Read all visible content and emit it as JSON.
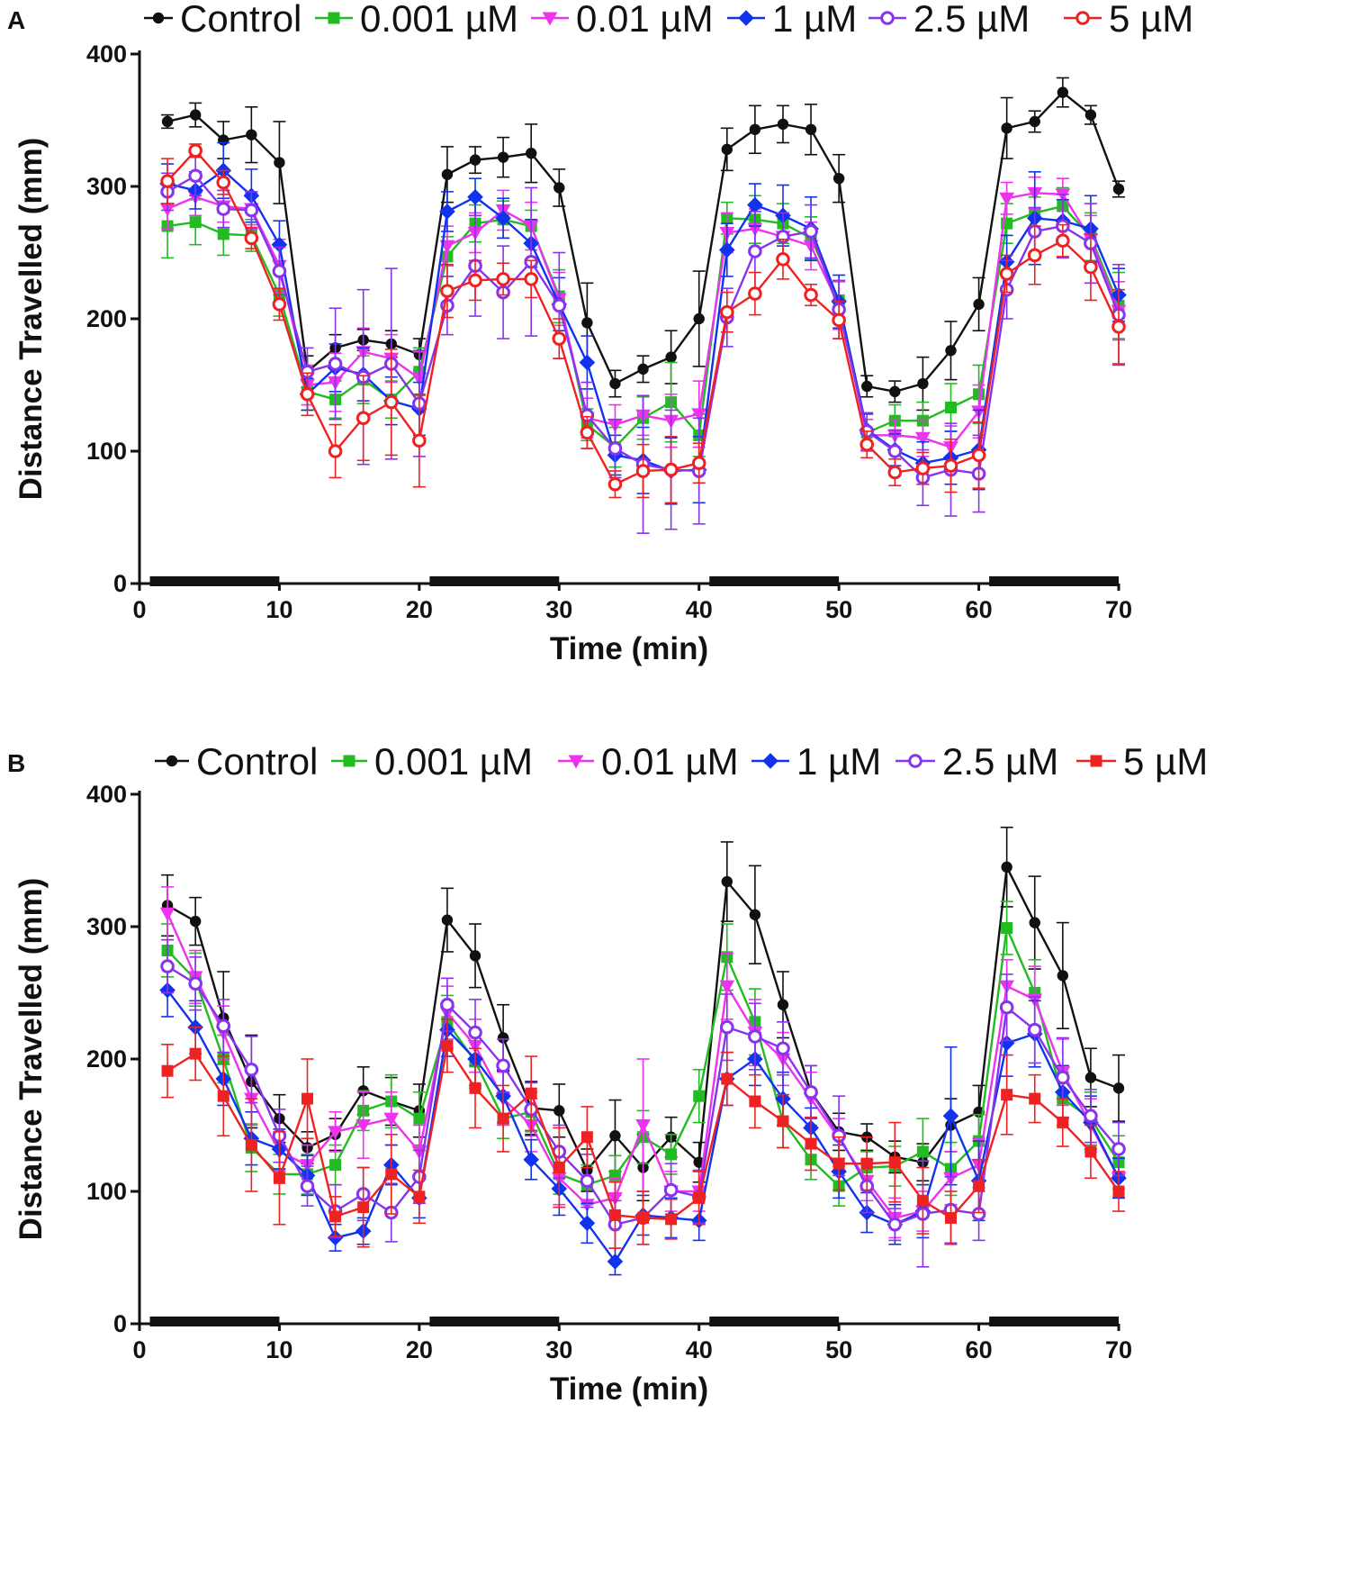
{
  "colors": {
    "Control": "#111111",
    "0.001 µM": "#22bb22",
    "0.01 µM": "#ee33ee",
    "1 µM": "#1133ee",
    "2.5 µM": "#8833ee",
    "5 µM": "#ee2222",
    "axis": "#111111"
  },
  "chart_data": [
    {
      "panel_label": "A",
      "type": "line",
      "xlabel": "Time (min)",
      "ylabel": "Distance Travelled (mm)",
      "xlim": [
        0,
        70
      ],
      "ylim": [
        0,
        400
      ],
      "x_ticks": [
        "0",
        "10",
        "20",
        "30",
        "40",
        "50",
        "60",
        "70"
      ],
      "y_ticks": [
        "0",
        "100",
        "200",
        "300",
        "400"
      ],
      "dark_periods_min": [
        [
          1,
          10
        ],
        [
          21,
          30
        ],
        [
          41,
          50
        ],
        [
          61,
          70
        ]
      ],
      "x": [
        2,
        4,
        6,
        8,
        10,
        12,
        14,
        16,
        18,
        20,
        22,
        24,
        26,
        28,
        30,
        32,
        34,
        36,
        38,
        40,
        42,
        44,
        46,
        48,
        50,
        52,
        54,
        56,
        58,
        60,
        62,
        64,
        66,
        68,
        70
      ],
      "series": [
        {
          "name": "Control",
          "marker": "circle",
          "filled": true,
          "values": [
            349,
            354,
            335,
            339,
            318,
            160,
            178,
            184,
            181,
            173,
            309,
            320,
            322,
            325,
            299,
            197,
            151,
            162,
            171,
            200,
            328,
            343,
            347,
            343,
            306,
            149,
            145,
            151,
            176,
            211,
            344,
            349,
            371,
            354,
            298
          ],
          "errors": [
            5,
            9,
            14,
            21,
            31,
            12,
            10,
            8,
            10,
            12,
            21,
            10,
            15,
            22,
            14,
            30,
            10,
            10,
            20,
            36,
            16,
            18,
            14,
            19,
            18,
            8,
            8,
            20,
            22,
            20,
            23,
            8,
            11,
            7,
            6
          ]
        },
        {
          "name": "0.001 µM",
          "marker": "square",
          "filled": true,
          "values": [
            270,
            273,
            264,
            263,
            218,
            145,
            139,
            154,
            139,
            160,
            247,
            272,
            275,
            270,
            217,
            120,
            103,
            125,
            137,
            112,
            276,
            275,
            272,
            261,
            214,
            114,
            123,
            123,
            133,
            143,
            272,
            280,
            285,
            262,
            210
          ],
          "errors": [
            24,
            17,
            16,
            12,
            16,
            14,
            14,
            18,
            14,
            18,
            15,
            14,
            14,
            12,
            20,
            12,
            15,
            16,
            30,
            16,
            12,
            18,
            15,
            16,
            14,
            10,
            12,
            14,
            18,
            22,
            15,
            12,
            14,
            18,
            25
          ]
        },
        {
          "name": "0.01 µM",
          "marker": "triangle-down",
          "filled": true,
          "values": [
            283,
            292,
            285,
            283,
            240,
            150,
            152,
            175,
            170,
            155,
            255,
            265,
            282,
            270,
            215,
            125,
            120,
            127,
            123,
            128,
            265,
            268,
            262,
            255,
            210,
            112,
            112,
            110,
            103,
            130,
            291,
            295,
            294,
            260,
            206
          ],
          "errors": [
            15,
            14,
            12,
            12,
            20,
            15,
            22,
            18,
            18,
            20,
            15,
            15,
            15,
            18,
            20,
            15,
            15,
            15,
            20,
            25,
            15,
            15,
            15,
            18,
            18,
            12,
            12,
            14,
            16,
            20,
            12,
            12,
            12,
            18,
            22
          ]
        },
        {
          "name": "1 µM",
          "marker": "diamond",
          "filled": true,
          "values": [
            302,
            297,
            312,
            293,
            256,
            143,
            163,
            158,
            138,
            132,
            281,
            292,
            276,
            257,
            211,
            167,
            97,
            93,
            85,
            86,
            252,
            286,
            278,
            268,
            213,
            116,
            101,
            91,
            95,
            101,
            243,
            276,
            274,
            268,
            218
          ],
          "errors": [
            15,
            14,
            21,
            20,
            18,
            12,
            18,
            20,
            18,
            20,
            15,
            14,
            15,
            18,
            20,
            20,
            15,
            25,
            25,
            25,
            20,
            16,
            23,
            24,
            20,
            12,
            12,
            16,
            20,
            30,
            20,
            35,
            16,
            25,
            20
          ]
        },
        {
          "name": "2.5 µM",
          "marker": "circle",
          "filled": false,
          "values": [
            296,
            308,
            283,
            282,
            236,
            160,
            166,
            156,
            166,
            136,
            210,
            240,
            220,
            243,
            210,
            127,
            102,
            90,
            86,
            85,
            201,
            251,
            262,
            266,
            207,
            115,
            100,
            80,
            86,
            83,
            222,
            266,
            270,
            257,
            203
          ],
          "errors": [
            14,
            15,
            14,
            14,
            18,
            18,
            42,
            66,
            72,
            40,
            22,
            38,
            35,
            56,
            40,
            25,
            22,
            52,
            45,
            40,
            22,
            30,
            18,
            20,
            22,
            14,
            16,
            21,
            35,
            29,
            22,
            18,
            24,
            30,
            38
          ]
        },
        {
          "name": "5 µM",
          "marker": "circle",
          "filled": false,
          "values": [
            304,
            327,
            303,
            261,
            211,
            143,
            100,
            125,
            137,
            108,
            221,
            229,
            230,
            230,
            185,
            114,
            75,
            85,
            86,
            91,
            205,
            219,
            245,
            218,
            199,
            105,
            84,
            87,
            89,
            97,
            234,
            248,
            259,
            239,
            194
          ],
          "errors": [
            17,
            5,
            9,
            8,
            12,
            16,
            20,
            32,
            40,
            35,
            20,
            15,
            12,
            14,
            15,
            12,
            10,
            20,
            25,
            15,
            15,
            16,
            15,
            8,
            14,
            10,
            10,
            12,
            20,
            25,
            14,
            22,
            12,
            25,
            28
          ]
        }
      ],
      "legend": {
        "position": "top",
        "items": [
          "Control",
          "0.001 µM",
          "0.01 µM",
          "1 µM",
          "2.5 µM",
          "5 µM"
        ]
      }
    },
    {
      "panel_label": "B",
      "type": "line",
      "xlabel": "Time (min)",
      "ylabel": "Distance Travelled (mm)",
      "xlim": [
        0,
        70
      ],
      "ylim": [
        0,
        400
      ],
      "x_ticks": [
        "0",
        "10",
        "20",
        "30",
        "40",
        "50",
        "60",
        "70"
      ],
      "y_ticks": [
        "0",
        "100",
        "200",
        "300",
        "400"
      ],
      "dark_periods_min": [
        [
          1,
          10
        ],
        [
          21,
          30
        ],
        [
          41,
          50
        ],
        [
          61,
          70
        ]
      ],
      "x": [
        2,
        4,
        6,
        8,
        10,
        12,
        14,
        16,
        18,
        20,
        22,
        24,
        26,
        28,
        30,
        32,
        34,
        36,
        38,
        40,
        42,
        44,
        46,
        48,
        50,
        52,
        54,
        56,
        58,
        60,
        62,
        64,
        66,
        68,
        70
      ],
      "series": [
        {
          "name": "Control",
          "marker": "circle",
          "filled": true,
          "values": [
            316,
            304,
            231,
            183,
            155,
            133,
            143,
            176,
            168,
            161,
            305,
            278,
            216,
            163,
            161,
            116,
            142,
            118,
            141,
            122,
            334,
            309,
            241,
            175,
            145,
            141,
            126,
            122,
            150,
            160,
            345,
            303,
            263,
            186,
            178
          ],
          "errors": [
            23,
            18,
            35,
            35,
            18,
            12,
            12,
            18,
            18,
            20,
            24,
            24,
            25,
            20,
            20,
            16,
            27,
            25,
            15,
            15,
            30,
            37,
            25,
            20,
            14,
            10,
            12,
            14,
            20,
            20,
            30,
            35,
            40,
            22,
            25
          ]
        },
        {
          "name": "0.001 µM",
          "marker": "square",
          "filled": true,
          "values": [
            282,
            260,
            200,
            133,
            113,
            113,
            120,
            161,
            168,
            155,
            228,
            198,
            155,
            160,
            113,
            105,
            112,
            141,
            128,
            172,
            277,
            228,
            153,
            124,
            104,
            118,
            119,
            130,
            117,
            138,
            299,
            250,
            170,
            155,
            122
          ],
          "errors": [
            20,
            20,
            18,
            18,
            15,
            15,
            15,
            15,
            20,
            20,
            20,
            20,
            15,
            15,
            15,
            15,
            15,
            20,
            15,
            20,
            25,
            25,
            20,
            15,
            15,
            12,
            15,
            25,
            20,
            20,
            20,
            25,
            20,
            20,
            20
          ]
        },
        {
          "name": "0.01 µM",
          "marker": "triangle-down",
          "filled": true,
          "values": [
            310,
            262,
            220,
            170,
            130,
            120,
            145,
            150,
            155,
            130,
            235,
            210,
            170,
            150,
            110,
            90,
            95,
            150,
            100,
            100,
            255,
            220,
            200,
            170,
            140,
            108,
            80,
            85,
            110,
            120,
            255,
            245,
            190,
            150,
            110
          ],
          "errors": [
            20,
            20,
            20,
            20,
            15,
            15,
            15,
            25,
            20,
            20,
            20,
            20,
            20,
            20,
            20,
            15,
            15,
            50,
            15,
            15,
            25,
            25,
            20,
            20,
            15,
            15,
            15,
            15,
            20,
            20,
            20,
            25,
            25,
            20,
            15
          ]
        },
        {
          "name": "1 µM",
          "marker": "diamond",
          "filled": true,
          "values": [
            252,
            224,
            185,
            140,
            132,
            112,
            65,
            70,
            120,
            95,
            222,
            200,
            172,
            124,
            102,
            76,
            47,
            82,
            80,
            78,
            185,
            200,
            170,
            148,
            115,
            84,
            75,
            85,
            157,
            108,
            212,
            219,
            175,
            152,
            110
          ],
          "errors": [
            20,
            20,
            20,
            20,
            15,
            15,
            10,
            10,
            15,
            15,
            20,
            20,
            20,
            15,
            20,
            15,
            10,
            15,
            15,
            15,
            20,
            20,
            20,
            15,
            20,
            15,
            15,
            20,
            52,
            30,
            25,
            25,
            20,
            20,
            15
          ]
        },
        {
          "name": "2.5 µM",
          "marker": "circle",
          "filled": false,
          "values": [
            270,
            257,
            225,
            192,
            142,
            104,
            85,
            98,
            84,
            111,
            241,
            220,
            195,
            162,
            130,
            108,
            75,
            80,
            101,
            96,
            224,
            217,
            208,
            175,
            142,
            104,
            75,
            83,
            86,
            83,
            239,
            222,
            186,
            157,
            132
          ],
          "errors": [
            20,
            20,
            20,
            25,
            20,
            15,
            20,
            20,
            22,
            20,
            20,
            25,
            20,
            20,
            20,
            20,
            18,
            20,
            20,
            20,
            25,
            25,
            20,
            20,
            30,
            20,
            12,
            40,
            25,
            20,
            25,
            25,
            30,
            20,
            20
          ]
        },
        {
          "name": "5 µM",
          "marker": "square",
          "filled": true,
          "values": [
            191,
            204,
            172,
            135,
            110,
            170,
            81,
            88,
            113,
            96,
            210,
            178,
            155,
            174,
            118,
            141,
            82,
            80,
            79,
            95,
            185,
            168,
            153,
            136,
            121,
            121,
            122,
            93,
            80,
            104,
            173,
            170,
            152,
            130,
            100
          ],
          "errors": [
            20,
            20,
            30,
            35,
            35,
            30,
            15,
            30,
            30,
            20,
            20,
            30,
            25,
            28,
            30,
            23,
            25,
            20,
            15,
            20,
            20,
            20,
            20,
            20,
            20,
            20,
            30,
            25,
            20,
            20,
            30,
            18,
            18,
            20,
            15
          ]
        }
      ],
      "legend": {
        "position": "top",
        "items": [
          "Control",
          "0.001 µM",
          "0.01 µM",
          "1 µM",
          "2.5 µM",
          "5 µM"
        ]
      }
    }
  ]
}
